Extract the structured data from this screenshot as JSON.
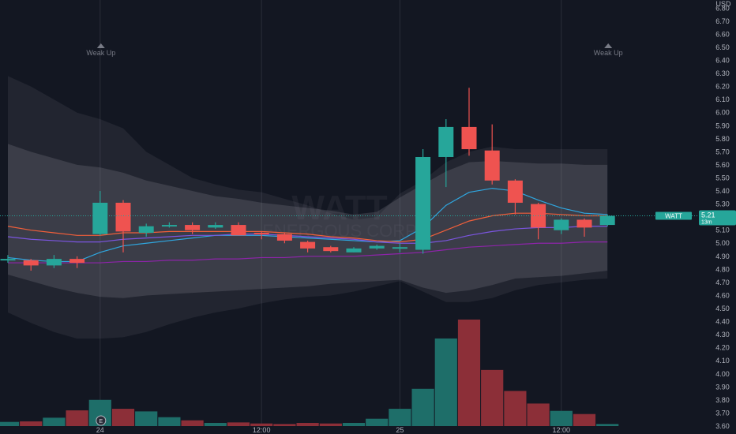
{
  "chart_data": {
    "type": "candlestick",
    "symbol": "WATT",
    "currency": "USD",
    "last_price": "5.21",
    "last_countdown": "13m",
    "watermark_symbol": "WATT",
    "watermark_name": "ENERGOUS CORP",
    "x_labels": [
      {
        "label": "24",
        "i": 4
      },
      {
        "label": "12:00",
        "i": 11
      },
      {
        "label": "25",
        "i": 17
      },
      {
        "label": "12:00",
        "i": 24
      }
    ],
    "y_ticks": [
      "6.80",
      "6.70",
      "6.60",
      "6.50",
      "6.40",
      "6.30",
      "6.20",
      "6.10",
      "6.00",
      "5.90",
      "5.80",
      "5.70",
      "5.60",
      "5.50",
      "5.40",
      "5.30",
      "5.20",
      "5.10",
      "5.00",
      "4.90",
      "4.80",
      "4.70",
      "4.60",
      "4.50",
      "4.40",
      "4.30",
      "4.20",
      "4.10",
      "4.00",
      "3.90",
      "3.80",
      "3.70",
      "3.60"
    ],
    "y_range": [
      3.6,
      6.85
    ],
    "annotations": [
      {
        "text": "Weak Up",
        "i": 4
      },
      {
        "text": "Weak Up",
        "i": 26
      }
    ],
    "event_marker": {
      "text": "E",
      "i": 4
    },
    "candles": [
      {
        "o": 4.88,
        "h": 4.91,
        "l": 4.85,
        "c": 4.88
      },
      {
        "o": 4.87,
        "h": 4.88,
        "l": 4.79,
        "c": 4.83
      },
      {
        "o": 4.83,
        "h": 4.91,
        "l": 4.81,
        "c": 4.88
      },
      {
        "o": 4.88,
        "h": 4.9,
        "l": 4.81,
        "c": 4.85
      },
      {
        "o": 5.07,
        "h": 5.4,
        "l": 5.06,
        "c": 5.31
      },
      {
        "o": 5.31,
        "h": 5.33,
        "l": 4.93,
        "c": 5.09
      },
      {
        "o": 5.08,
        "h": 5.15,
        "l": 5.05,
        "c": 5.13
      },
      {
        "o": 5.14,
        "h": 5.16,
        "l": 5.12,
        "c": 5.14
      },
      {
        "o": 5.14,
        "h": 5.16,
        "l": 5.07,
        "c": 5.1
      },
      {
        "o": 5.12,
        "h": 5.16,
        "l": 5.11,
        "c": 5.14
      },
      {
        "o": 5.14,
        "h": 5.16,
        "l": 5.06,
        "c": 5.06
      },
      {
        "o": 5.08,
        "h": 5.09,
        "l": 5.03,
        "c": 5.07
      },
      {
        "o": 5.07,
        "h": 5.08,
        "l": 5.0,
        "c": 5.02
      },
      {
        "o": 5.01,
        "h": 5.02,
        "l": 4.93,
        "c": 4.96
      },
      {
        "o": 4.97,
        "h": 4.98,
        "l": 4.93,
        "c": 4.94
      },
      {
        "o": 4.93,
        "h": 4.97,
        "l": 4.93,
        "c": 4.96
      },
      {
        "o": 4.96,
        "h": 4.99,
        "l": 4.95,
        "c": 4.98
      },
      {
        "o": 4.97,
        "h": 5.0,
        "l": 4.93,
        "c": 4.97
      },
      {
        "o": 4.95,
        "h": 5.72,
        "l": 4.92,
        "c": 5.66
      },
      {
        "o": 5.66,
        "h": 5.95,
        "l": 5.43,
        "c": 5.89
      },
      {
        "o": 5.89,
        "h": 6.19,
        "l": 5.67,
        "c": 5.72
      },
      {
        "o": 5.71,
        "h": 5.91,
        "l": 5.45,
        "c": 5.48
      },
      {
        "o": 5.48,
        "h": 5.49,
        "l": 5.22,
        "c": 5.31
      },
      {
        "o": 5.3,
        "h": 5.31,
        "l": 5.03,
        "c": 5.12
      },
      {
        "o": 5.1,
        "h": 5.19,
        "l": 5.07,
        "c": 5.18
      },
      {
        "o": 5.18,
        "h": 5.19,
        "l": 5.05,
        "c": 5.12
      },
      {
        "o": 5.14,
        "h": 5.22,
        "l": 5.13,
        "c": 5.21
      }
    ],
    "volume": [
      0.8,
      0.9,
      1.6,
      3.0,
      5.0,
      3.3,
      2.8,
      1.7,
      1.1,
      0.6,
      0.7,
      0.5,
      0.4,
      0.6,
      0.5,
      0.6,
      1.4,
      3.3,
      7.1,
      16.7,
      20.3,
      10.7,
      6.7,
      4.3,
      2.9,
      2.3,
      0.4
    ],
    "bands": {
      "outer_upper": [
        6.28,
        6.2,
        6.1,
        6.0,
        5.95,
        5.88,
        5.7,
        5.6,
        5.5,
        5.45,
        5.41,
        5.39,
        5.34,
        5.29,
        5.23,
        5.18,
        5.2,
        5.38,
        5.48,
        5.62,
        5.7,
        5.74,
        5.72,
        5.72,
        5.72,
        5.72,
        5.72
      ],
      "inner_upper": [
        5.76,
        5.7,
        5.65,
        5.6,
        5.58,
        5.54,
        5.48,
        5.44,
        5.4,
        5.36,
        5.34,
        5.31,
        5.29,
        5.27,
        5.25,
        5.22,
        5.24,
        5.35,
        5.45,
        5.55,
        5.62,
        5.63,
        5.62,
        5.61,
        5.61,
        5.6,
        5.6
      ],
      "inner_lower": [
        4.76,
        4.71,
        4.66,
        4.62,
        4.59,
        4.58,
        4.6,
        4.61,
        4.62,
        4.63,
        4.64,
        4.65,
        4.66,
        4.67,
        4.69,
        4.7,
        4.71,
        4.72,
        4.66,
        4.62,
        4.64,
        4.68,
        4.73,
        4.74,
        4.75,
        4.77,
        4.79
      ],
      "outer_lower": [
        4.47,
        4.39,
        4.32,
        4.27,
        4.27,
        4.28,
        4.32,
        4.38,
        4.43,
        4.47,
        4.5,
        4.54,
        4.57,
        4.59,
        4.6,
        4.63,
        4.67,
        4.71,
        4.63,
        4.55,
        4.55,
        4.58,
        4.64,
        4.68,
        4.7,
        4.72,
        4.73
      ]
    },
    "lines": [
      {
        "color": "#2fa7e0",
        "values": [
          4.89,
          4.87,
          4.86,
          4.86,
          4.93,
          4.98,
          5.0,
          5.02,
          5.04,
          5.06,
          5.06,
          5.06,
          5.05,
          5.04,
          5.03,
          5.02,
          5.01,
          5.02,
          5.12,
          5.29,
          5.39,
          5.42,
          5.4,
          5.33,
          5.27,
          5.23,
          5.22
        ]
      },
      {
        "color": "#f25f3a",
        "values": [
          5.13,
          5.1,
          5.08,
          5.06,
          5.06,
          5.08,
          5.08,
          5.09,
          5.09,
          5.09,
          5.09,
          5.09,
          5.08,
          5.07,
          5.05,
          5.04,
          5.02,
          5.01,
          5.03,
          5.1,
          5.17,
          5.21,
          5.23,
          5.23,
          5.22,
          5.21,
          5.21
        ]
      },
      {
        "color": "#7b55e0",
        "values": [
          5.05,
          5.03,
          5.02,
          5.01,
          5.01,
          5.03,
          5.04,
          5.05,
          5.06,
          5.06,
          5.07,
          5.07,
          5.06,
          5.05,
          5.04,
          5.03,
          5.01,
          5.0,
          5.0,
          5.02,
          5.06,
          5.09,
          5.11,
          5.12,
          5.12,
          5.13,
          5.13
        ]
      },
      {
        "color": "#8e24aa",
        "values": [
          4.85,
          4.85,
          4.85,
          4.85,
          4.85,
          4.86,
          4.86,
          4.87,
          4.87,
          4.88,
          4.88,
          4.89,
          4.89,
          4.9,
          4.9,
          4.9,
          4.91,
          4.92,
          4.93,
          4.95,
          4.97,
          4.98,
          4.99,
          5.0,
          5.0,
          5.01,
          5.01
        ]
      }
    ],
    "colors": {
      "up": "#26a69a",
      "down": "#ef5350",
      "vol_up": "#1e6e69",
      "vol_down": "#8c2f38",
      "background": "#131722",
      "grid": "#2a2e39",
      "price_badge": "#26a69a",
      "price_line": "#26a69a",
      "band_outer": "#787b86",
      "band_inner": "#9598a1"
    }
  }
}
